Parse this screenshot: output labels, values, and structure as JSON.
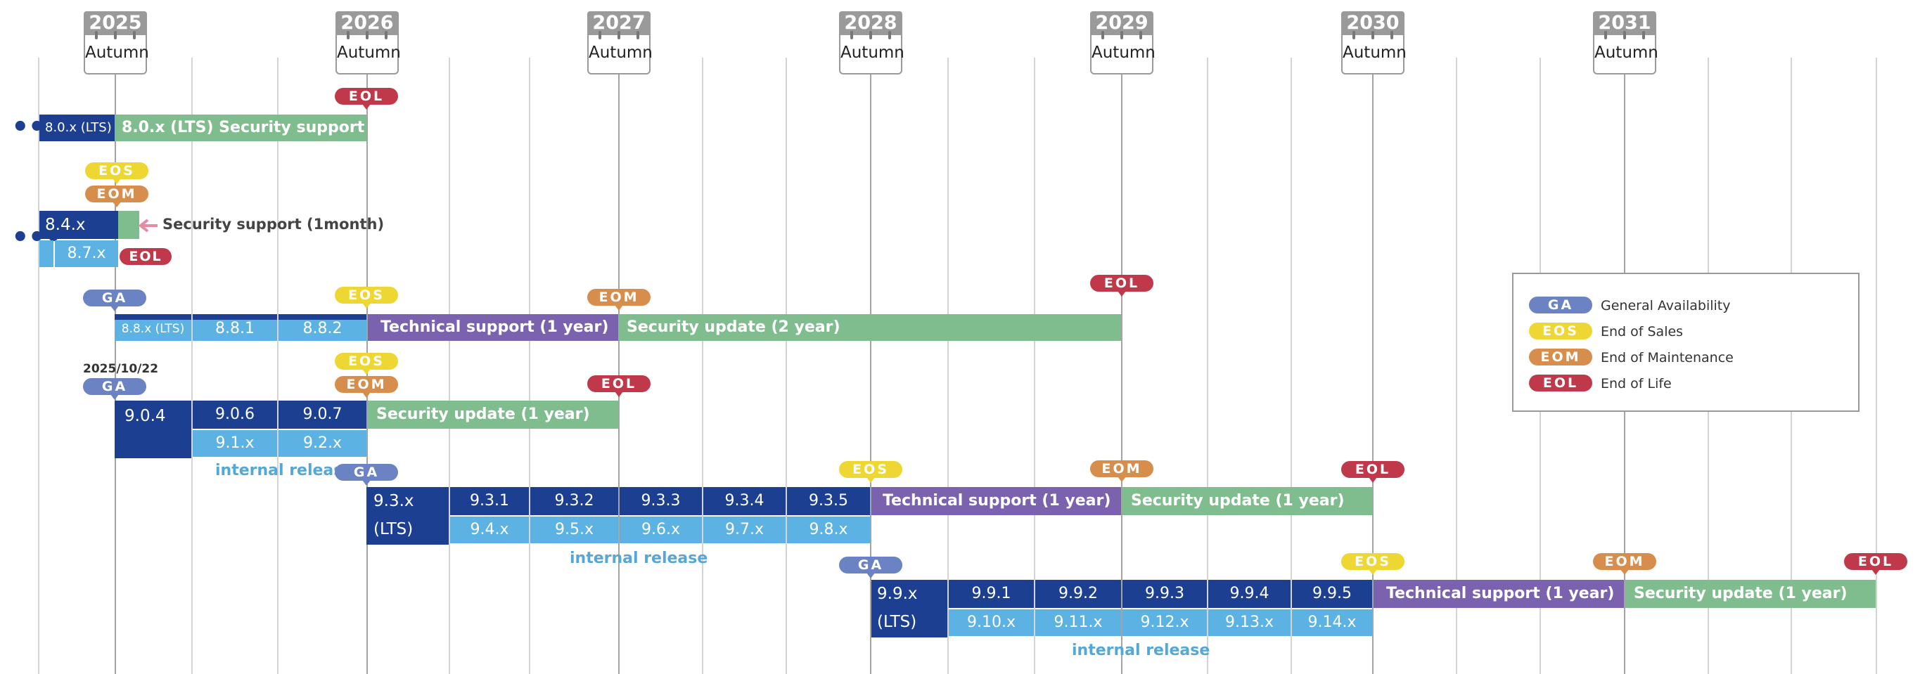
{
  "years": [
    "2025",
    "2026",
    "2027",
    "2028",
    "2029",
    "2030",
    "2031"
  ],
  "season": "Autumn",
  "milestones": {
    "ga": "GA",
    "eos": "EOS",
    "eom": "EOM",
    "eol": "EOL"
  },
  "legend": [
    {
      "code": "GA",
      "label": "General Availability"
    },
    {
      "code": "EOS",
      "label": "End of Sales"
    },
    {
      "code": "EOM",
      "label": "End of Maintenance"
    },
    {
      "code": "EOL",
      "label": "End of Life"
    }
  ],
  "colors": {
    "release": "#1c3f91",
    "internal": "#5cb2e3",
    "technical_support": "#7b62ae",
    "security": "#7fbd8f",
    "ga": "#6b83c2",
    "eos": "#eed733",
    "eom": "#d78e4c",
    "eol": "#c0394a"
  },
  "row1": {
    "v": "8.0.x (LTS)",
    "security": "8.0.x (LTS) Security support"
  },
  "row2": {
    "v": "8.4.x",
    "internal": "8.7.x",
    "note": "Security support (1month)"
  },
  "row3": {
    "v": "8.8.x (LTS)",
    "p1": "8.8.1",
    "p2": "8.8.2",
    "tech": "Technical support (1 year)",
    "security": "Security update (2 year)"
  },
  "row4": {
    "date": "2025/10/22",
    "v": "9.0.4",
    "p1": "9.0.6",
    "p2": "9.0.7",
    "i1": "9.1.x",
    "i2": "9.2.x",
    "security": "Security update (1 year)",
    "internal_label": "internal release"
  },
  "row5": {
    "v": "9.3.x",
    "lts": "(LTS)",
    "patches": [
      "9.3.1",
      "9.3.2",
      "9.3.3",
      "9.3.4",
      "9.3.5"
    ],
    "internals": [
      "9.4.x",
      "9.5.x",
      "9.6.x",
      "9.7.x",
      "9.8.x"
    ],
    "tech": "Technical support (1 year)",
    "security": "Security update (1 year)",
    "internal_label": "internal release"
  },
  "row6": {
    "v": "9.9.x",
    "lts": "(LTS)",
    "patches": [
      "9.9.1",
      "9.9.2",
      "9.9.3",
      "9.9.4",
      "9.9.5"
    ],
    "internals": [
      "9.10.x",
      "9.11.x",
      "9.12.x",
      "9.13.x",
      "9.14.x"
    ],
    "tech": "Technical support (1 year)",
    "security": "Security update (1 year)",
    "internal_label": "internal release"
  }
}
